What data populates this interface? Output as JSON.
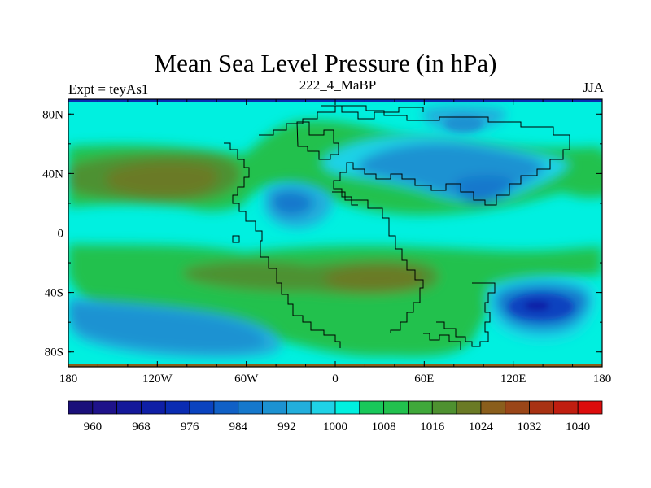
{
  "chart_data": {
    "type": "contour-map",
    "title": "Mean Sea Level Pressure (in hPa)",
    "subtitle_left": "Expt = teyAs1",
    "subtitle_center": "222_4_MaBP",
    "subtitle_right": "JJA",
    "x_ticks": [
      "180",
      "120W",
      "60W",
      "0",
      "60E",
      "120E",
      "180"
    ],
    "y_ticks": [
      "80N",
      "40N",
      "0",
      "40S",
      "80S"
    ],
    "colorbar_labels": [
      "960",
      "968",
      "976",
      "984",
      "992",
      "1000",
      "1008",
      "1016",
      "1024",
      "1032",
      "1040"
    ],
    "levels": [
      956,
      960,
      964,
      968,
      972,
      976,
      980,
      984,
      988,
      992,
      996,
      1000,
      1004,
      1008,
      1012,
      1016,
      1020,
      1024,
      1028,
      1032,
      1036,
      1040,
      1044
    ],
    "colors": {
      "c956": "#1a0f7a",
      "c960": "#1e128a",
      "c964": "#14189a",
      "c968": "#0f1fa6",
      "c972": "#0a2cb2",
      "c976": "#0a43bf",
      "c980": "#1060c6",
      "c984": "#1578cc",
      "c988": "#1c92d2",
      "c992": "#22aedc",
      "c996": "#1fd2e6",
      "c1000": "#00f0e0",
      "c1004": "#18c85a",
      "c1008": "#22c14e",
      "c1012": "#3fa83a",
      "c1016": "#4e9130",
      "c1020": "#6a7a25",
      "c1024": "#8a5e1c",
      "c1028": "#9a4618",
      "c1032": "#a83213",
      "c1036": "#c01e10",
      "c1040": "#dd0c0c"
    }
  }
}
